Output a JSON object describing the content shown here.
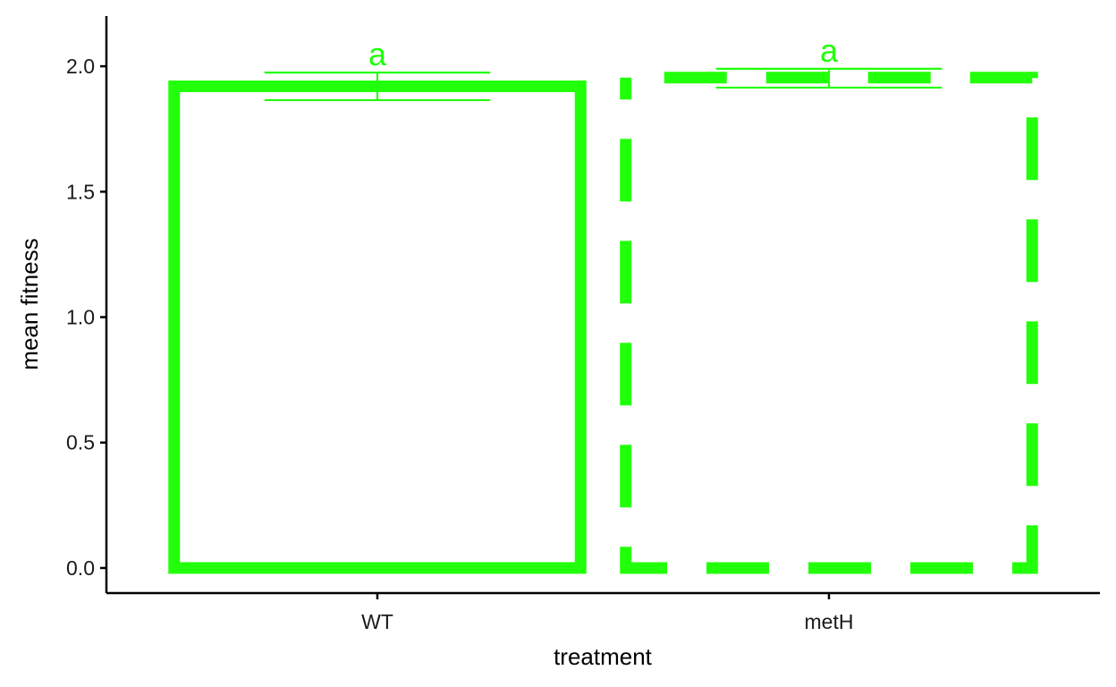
{
  "chart_data": {
    "type": "bar",
    "title": "",
    "xlabel": "treatment",
    "ylabel": "mean fitness",
    "categories": [
      "WT",
      "metH"
    ],
    "values": [
      1.92,
      1.955
    ],
    "error_low": [
      1.865,
      1.915
    ],
    "error_high": [
      1.975,
      1.99
    ],
    "significance_labels": [
      "a",
      "a"
    ],
    "bar_styles": [
      "solid",
      "dashed"
    ],
    "ylim": [
      -0.1,
      2.2
    ],
    "yticks": [
      0.0,
      0.5,
      1.0,
      1.5,
      2.0
    ],
    "ytick_labels": [
      "0.0",
      "0.5",
      "1.0",
      "1.5",
      "2.0"
    ],
    "grid": false,
    "legend": "none",
    "colors": {
      "bar": "#22ff0a",
      "axis": "#000000"
    }
  }
}
